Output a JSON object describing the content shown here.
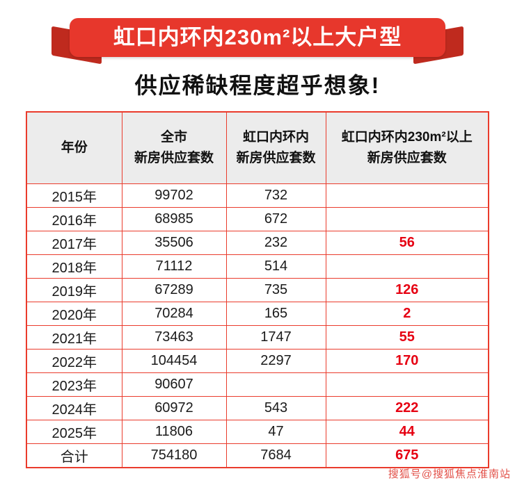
{
  "banner": {
    "title": "虹口内环内230m²以上大户型"
  },
  "subtitle": "供应稀缺程度超乎想象!",
  "table": {
    "headers": [
      "年份",
      "全市\n新房供应套数",
      "虹口内环内\n新房供应套数",
      "虹口内环内230m²以上\n新房供应套数"
    ],
    "rows": [
      [
        "2015年",
        "99702",
        "732",
        ""
      ],
      [
        "2016年",
        "68985",
        "672",
        ""
      ],
      [
        "2017年",
        "35506",
        "232",
        "56"
      ],
      [
        "2018年",
        "71112",
        "514",
        ""
      ],
      [
        "2019年",
        "67289",
        "735",
        "126"
      ],
      [
        "2020年",
        "70284",
        "165",
        "2"
      ],
      [
        "2021年",
        "73463",
        "1747",
        "55"
      ],
      [
        "2022年",
        "104454",
        "2297",
        "170"
      ],
      [
        "2023年",
        "90607",
        "",
        ""
      ],
      [
        "2024年",
        "60972",
        "543",
        "222"
      ],
      [
        "2025年",
        "11806",
        "47",
        "44"
      ],
      [
        "合计",
        "754180",
        "7684",
        "675"
      ]
    ]
  },
  "colors": {
    "banner_red": "#e7372c",
    "border_red": "#ea3b2c",
    "highlight_red": "#e60012",
    "header_gray": "#ececec"
  },
  "watermark": "搜狐号@搜狐焦点淮南站"
}
